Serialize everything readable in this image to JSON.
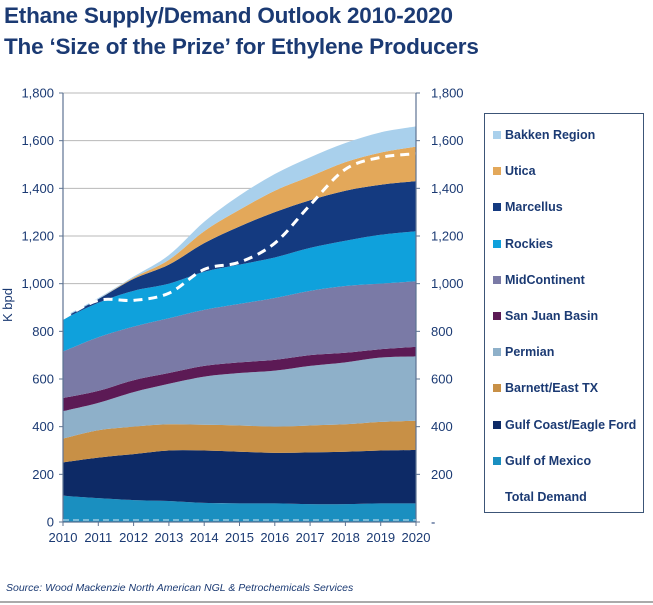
{
  "title_line1": "Ethane Supply/Demand Outlook 2010-2020",
  "title_line2": "The ‘Size of the Prize’ for Ethylene Producers",
  "source": "Source: Wood Mackenzie North American NGL & Petrochemicals Services",
  "chart_data": {
    "type": "area",
    "stacked": true,
    "title": "Ethane Supply/Demand Outlook 2010-2020",
    "subtitle": "The ‘Size of the Prize’ for Ethylene Producers",
    "xlabel": "",
    "ylabel": "K bpd",
    "x": [
      2010,
      2011,
      2012,
      2013,
      2014,
      2015,
      2016,
      2017,
      2018,
      2019,
      2020
    ],
    "ylim": [
      0,
      1800
    ],
    "yticks": [
      0,
      200,
      400,
      600,
      800,
      1000,
      1200,
      1400,
      1600,
      1800
    ],
    "ytick_labels_left": [
      "0",
      "200",
      "400",
      "600",
      "800",
      "1,000",
      "1,200",
      "1,400",
      "1,600",
      "1,800"
    ],
    "ytick_labels_right": [
      "-",
      "200",
      "400",
      "600",
      "800",
      "1,000",
      "1,200",
      "1,400",
      "1,600",
      "1,800"
    ],
    "grid": true,
    "legend_position": "right",
    "series": [
      {
        "name": "Gulf of Mexico",
        "color": "#1a8fc0",
        "values": [
          110,
          100,
          92,
          88,
          80,
          78,
          78,
          75,
          75,
          78,
          78
        ]
      },
      {
        "name": "Gulf Coast/Eagle Ford",
        "color": "#0d2a66",
        "values": [
          140,
          170,
          193,
          212,
          220,
          217,
          212,
          217,
          220,
          222,
          224
        ]
      },
      {
        "name": "Barnett/East TX",
        "color": "#c89046",
        "values": [
          100,
          115,
          115,
          110,
          108,
          110,
          110,
          113,
          115,
          120,
          123
        ]
      },
      {
        "name": "Permian",
        "color": "#8eb0c9",
        "values": [
          115,
          115,
          145,
          170,
          202,
          220,
          235,
          250,
          260,
          270,
          270
        ]
      },
      {
        "name": "San Juan Basin",
        "color": "#5c1a55",
        "values": [
          55,
          50,
          50,
          45,
          45,
          45,
          45,
          45,
          40,
          35,
          40
        ]
      },
      {
        "name": "MidContinent",
        "color": "#7a7aa6",
        "values": [
          195,
          225,
          225,
          230,
          235,
          245,
          260,
          270,
          280,
          275,
          275
        ]
      },
      {
        "name": "Rockies",
        "color": "#0fa1dc",
        "values": [
          135,
          145,
          150,
          145,
          160,
          165,
          170,
          180,
          190,
          205,
          210
        ]
      },
      {
        "name": "Marcellus",
        "color": "#143a80",
        "values": [
          5,
          15,
          50,
          80,
          120,
          160,
          190,
          200,
          210,
          210,
          210
        ]
      },
      {
        "name": "Utica",
        "color": "#e3a85a",
        "values": [
          0,
          0,
          5,
          20,
          50,
          70,
          90,
          100,
          120,
          135,
          145
        ]
      },
      {
        "name": "Bakken Region",
        "color": "#a9d0ec",
        "values": [
          5,
          5,
          5,
          20,
          40,
          60,
          70,
          80,
          80,
          85,
          85
        ]
      }
    ],
    "lines": [
      {
        "name": "Total Demand",
        "color": "#ffffff",
        "style": "dashed",
        "values": [
          855,
          930,
          930,
          960,
          1060,
          1090,
          1170,
          1330,
          1480,
          1530,
          1545
        ]
      }
    ]
  },
  "legend": [
    {
      "label": "Bakken Region",
      "color": "#a9d0ec"
    },
    {
      "label": "Utica",
      "color": "#e3a85a"
    },
    {
      "label": "Marcellus",
      "color": "#143a80"
    },
    {
      "label": "Rockies",
      "color": "#0fa1dc"
    },
    {
      "label": "MidContinent",
      "color": "#7a7aa6"
    },
    {
      "label": "San Juan Basin",
      "color": "#5c1a55"
    },
    {
      "label": "Permian",
      "color": "#8eb0c9"
    },
    {
      "label": "Barnett/East TX",
      "color": "#c89046"
    },
    {
      "label": "Gulf Coast/Eagle Ford",
      "color": "#0d2a66"
    },
    {
      "label": "Gulf of Mexico",
      "color": "#1a8fc0"
    },
    {
      "label": "Total Demand",
      "color": null
    }
  ]
}
